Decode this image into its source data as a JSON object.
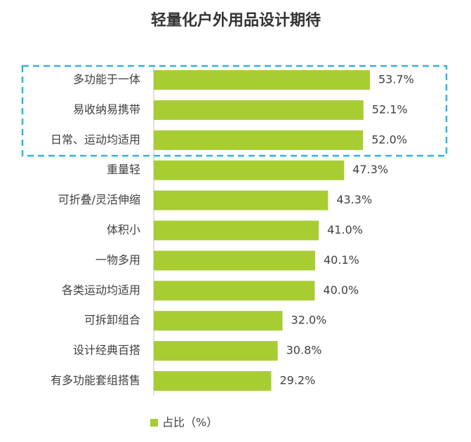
{
  "chart_data": {
    "type": "bar",
    "orientation": "horizontal",
    "title": "轻量化户外用品设计期待",
    "categories": [
      "多功能于一体",
      "易收纳易携带",
      "日常、运动均适用",
      "重量轻",
      "可折叠/灵活伸缩",
      "体积小",
      "一物多用",
      "各类运动均适用",
      "可拆卸组合",
      "设计经典百搭",
      "有多功能套组搭售"
    ],
    "series": [
      {
        "name": "占比（%）",
        "color": "#a8cd33",
        "values": [
          53.7,
          52.1,
          52.0,
          47.3,
          43.3,
          41.0,
          40.1,
          40.0,
          32.0,
          30.8,
          29.2
        ],
        "value_labels": [
          "53.7%",
          "52.1%",
          "52.0%",
          "47.3%",
          "43.3%",
          "41.0%",
          "40.1%",
          "40.0%",
          "32.0%",
          "30.8%",
          "29.2%"
        ]
      }
    ]
  }
}
